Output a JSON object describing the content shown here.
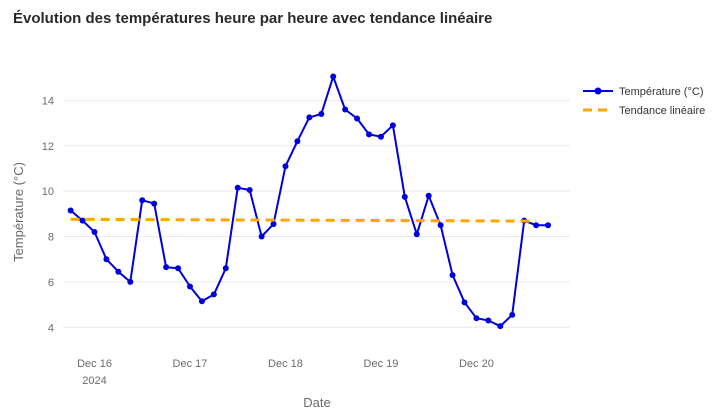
{
  "chart_data": {
    "type": "line",
    "title": "Évolution des températures heure par heure avec tendance linéaire",
    "xlabel": "Date",
    "ylabel": "Température (°C)",
    "x_ticks": [
      {
        "label": "Dec 16",
        "sublabel": "2024",
        "value": 0
      },
      {
        "label": "Dec 17",
        "sublabel": "",
        "value": 1
      },
      {
        "label": "Dec 18",
        "sublabel": "",
        "value": 2
      },
      {
        "label": "Dec 19",
        "sublabel": "",
        "value": 3
      },
      {
        "label": "Dec 20",
        "sublabel": "",
        "value": 4
      }
    ],
    "y_ticks": [
      4,
      6,
      8,
      10,
      12,
      14
    ],
    "xlim": [
      -0.33,
      4.98
    ],
    "ylim": [
      3.0,
      16.0
    ],
    "grid": true,
    "legend_position": "top-right",
    "series": [
      {
        "name": "Température (°C)",
        "style": "line+markers",
        "color": "#0000dd",
        "x": [
          -0.25,
          -0.125,
          0,
          0.125,
          0.25,
          0.375,
          0.5,
          0.625,
          0.75,
          0.875,
          1,
          1.125,
          1.25,
          1.375,
          1.5,
          1.625,
          1.75,
          1.875,
          2,
          2.125,
          2.25,
          2.375,
          2.5,
          2.625,
          2.75,
          2.875,
          3,
          3.125,
          3.25,
          3.375,
          3.5,
          3.625,
          3.75,
          3.875,
          4,
          4.125,
          4.25,
          4.375,
          4.5,
          4.625,
          4.75
        ],
        "values": [
          9.15,
          8.7,
          8.2,
          7.0,
          6.45,
          6.0,
          9.6,
          9.45,
          6.65,
          6.6,
          5.8,
          5.15,
          5.45,
          6.6,
          10.15,
          10.05,
          8.0,
          8.55,
          11.1,
          12.2,
          13.25,
          13.4,
          15.05,
          13.6,
          13.2,
          12.5,
          12.4,
          12.9,
          9.75,
          8.1,
          9.8,
          8.5,
          6.3,
          5.1,
          4.4,
          4.3,
          4.05,
          4.55,
          8.7,
          8.5,
          8.5
        ]
      },
      {
        "name": "Tendance linéaire",
        "style": "dashed",
        "color": "#ffa500",
        "x": [
          -0.25,
          4.625
        ],
        "values": [
          8.76,
          8.68
        ]
      }
    ]
  }
}
